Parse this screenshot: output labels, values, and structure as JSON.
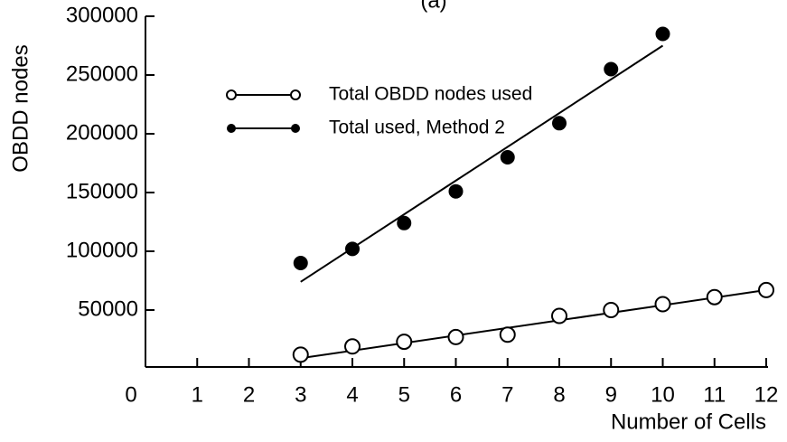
{
  "chart_data": {
    "type": "scatter",
    "title": "(a)",
    "x_label": "Number of Cells",
    "y_label": "OBDD nodes",
    "xlim": [
      0,
      12
    ],
    "xticks": [
      0,
      1,
      2,
      3,
      4,
      5,
      6,
      7,
      8,
      9,
      10,
      11,
      12
    ],
    "ylim": [
      0,
      300000
    ],
    "yticks": [
      50000,
      100000,
      150000,
      200000,
      250000,
      300000
    ],
    "legend": "upper left",
    "series": [
      {
        "name": "Total OBDD nodes used",
        "color": "#000000",
        "marker": "open",
        "x": [
          3,
          4,
          5,
          6,
          7,
          8,
          9,
          10,
          11,
          12
        ],
        "values": [
          12000,
          19000,
          23000,
          27000,
          29000,
          45000,
          50000,
          55000,
          61000,
          67000
        ],
        "fit": {
          "x": [
            3,
            12
          ],
          "values": [
            9000,
            67000
          ]
        }
      },
      {
        "name": "Total used, Method 2",
        "color": "#000000",
        "marker": "filled",
        "x": [
          3,
          4,
          5,
          6,
          7,
          8,
          9,
          10
        ],
        "values": [
          90000,
          102000,
          124000,
          151000,
          180000,
          209000,
          255000,
          285000
        ],
        "fit": {
          "x": [
            3,
            10
          ],
          "values": [
            74000,
            275000
          ]
        }
      }
    ]
  }
}
